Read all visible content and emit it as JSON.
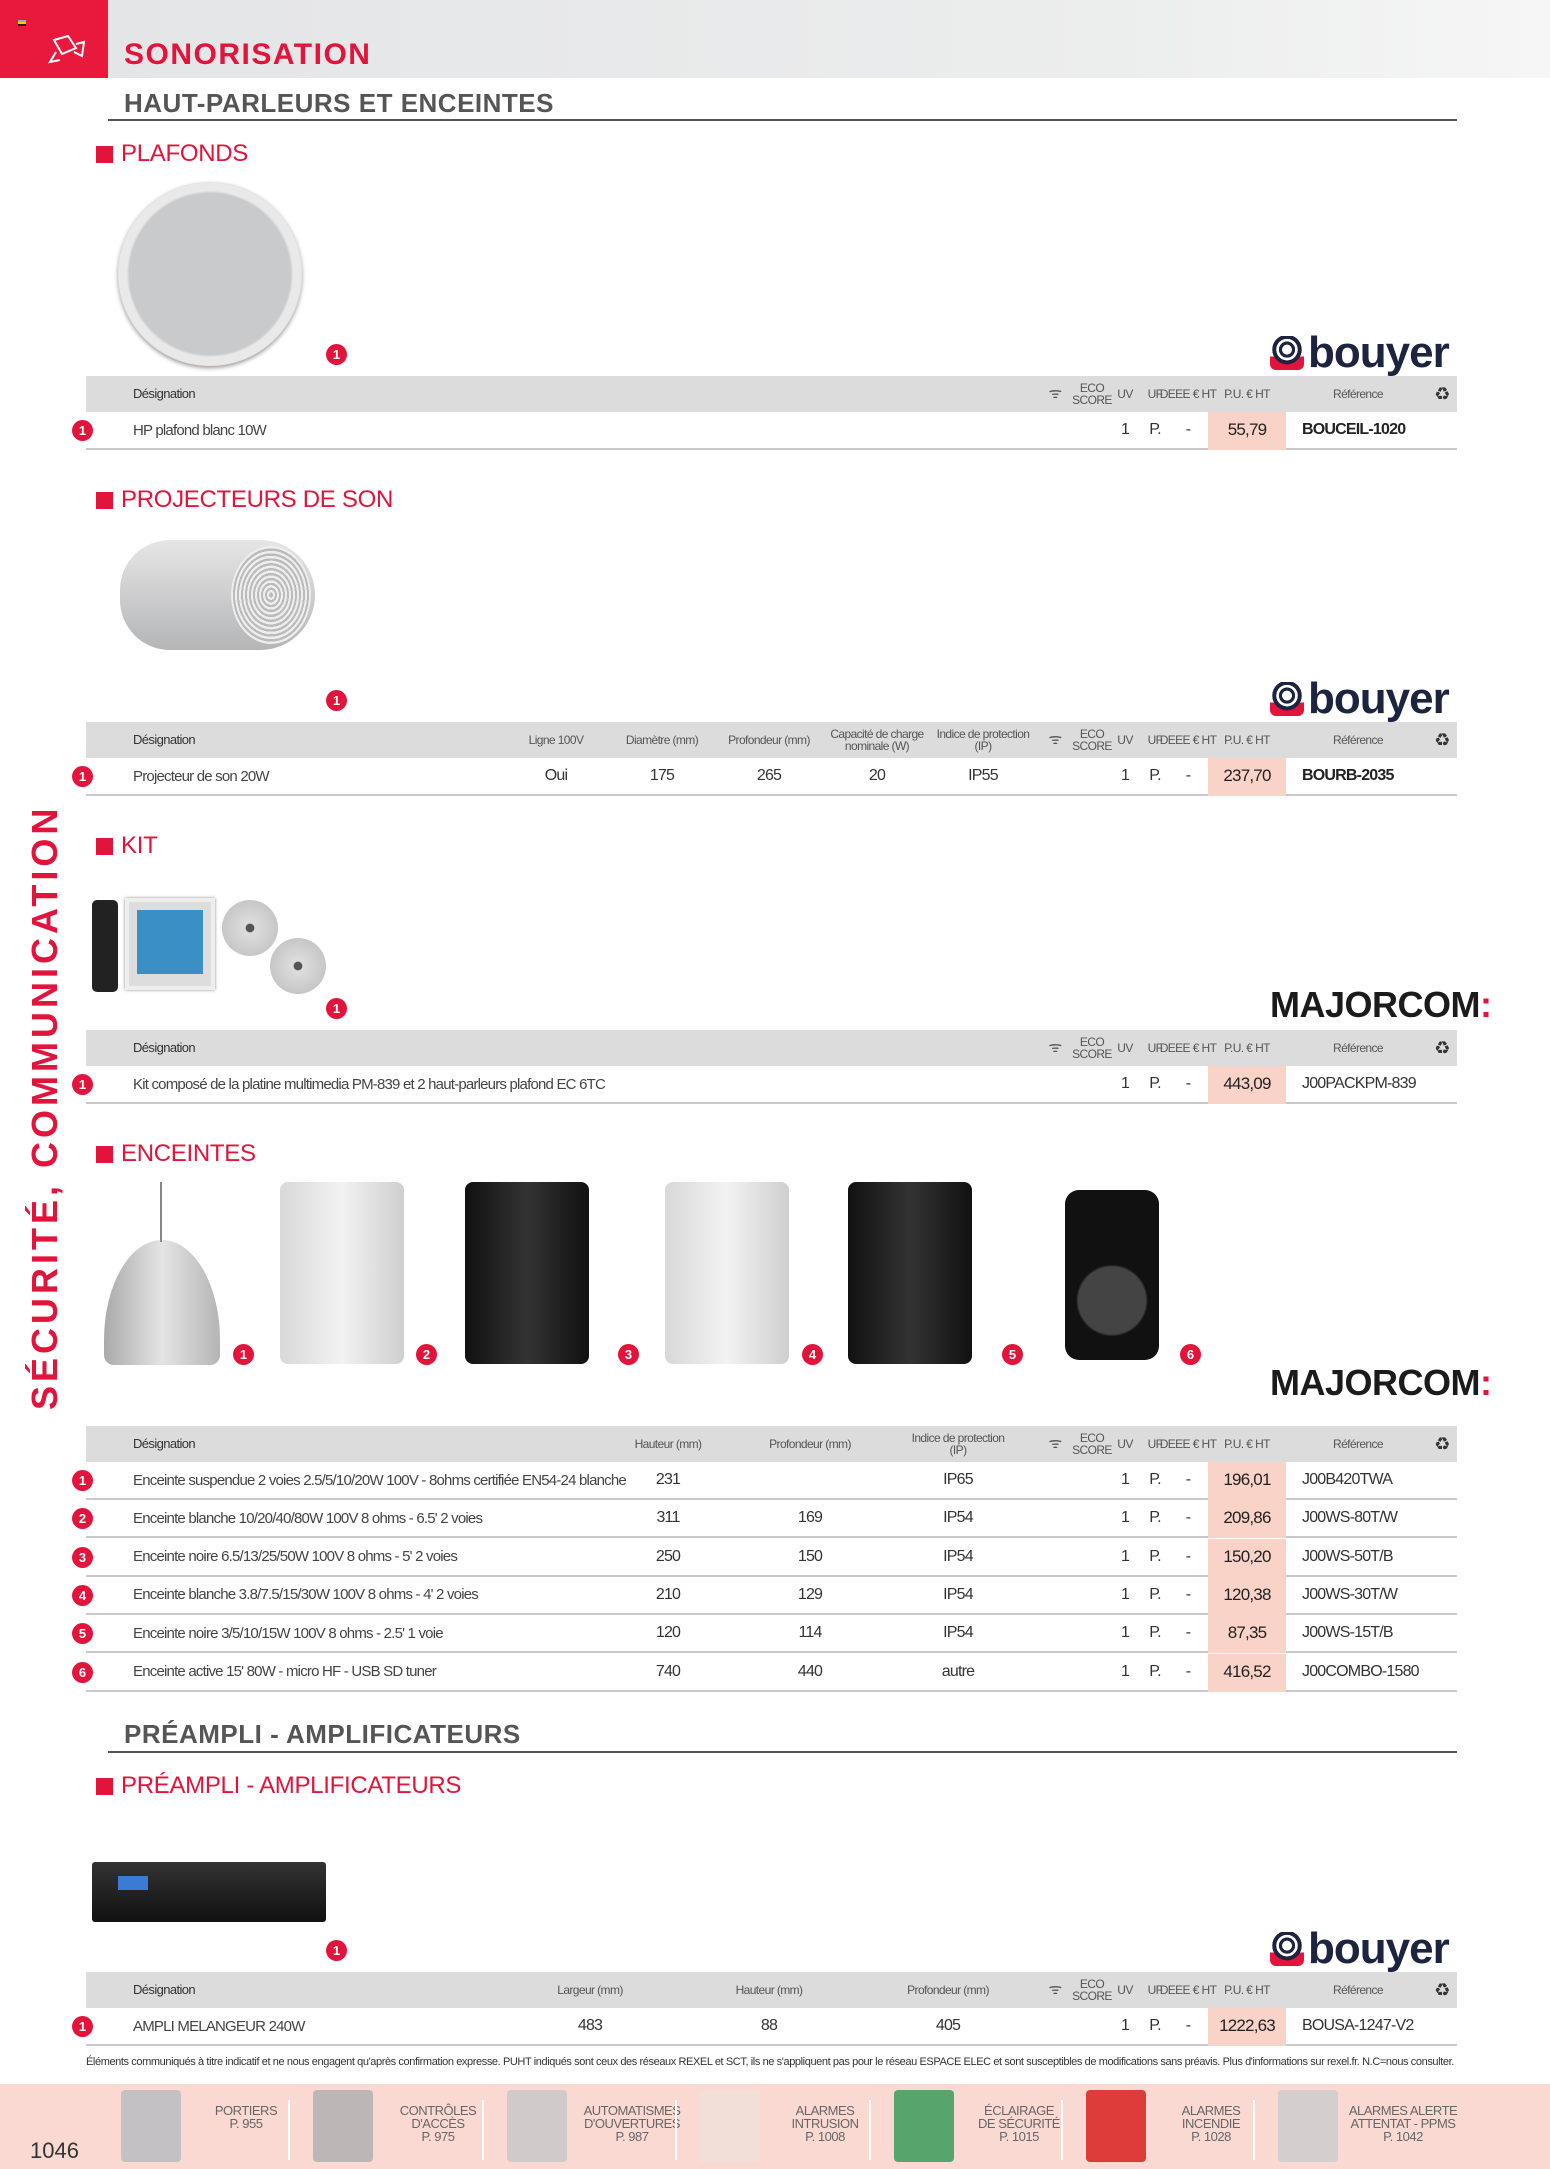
{
  "header": {
    "title": "SONORISATION",
    "side_title": "SÉCURITÉ, COMMUNICATION",
    "category_icon": "camera-icon",
    "accent_color": "#e2143b"
  },
  "sections": [
    {
      "title": "HAUT-PARLEURS ET ENCEINTES"
    },
    {
      "title": "PRÉAMPLI - AMPLIFICATEURS"
    }
  ],
  "blocks": [
    {
      "heading": "PLAFONDS",
      "brand": "bouyer",
      "markers": [
        "1"
      ],
      "table": {
        "columns": [
          "Désignation",
          "ECO SCORE",
          "UV",
          "UF",
          "DEEE € HT",
          "P.U. € HT",
          "Référence"
        ],
        "rows": [
          {
            "num": "1",
            "cells": [
              "HP plafond blanc 10W",
              "",
              "1",
              "P.",
              "-",
              "55,79",
              "BOUCEIL-1020"
            ]
          }
        ]
      }
    },
    {
      "heading": "PROJECTEURS DE SON",
      "brand": "bouyer",
      "markers": [
        "1"
      ],
      "table": {
        "columns": [
          "Désignation",
          "Ligne 100V",
          "Diamètre (mm)",
          "Profondeur (mm)",
          "Capacité de charge nominale (W)",
          "Indice de protection (IP)",
          "ECO SCORE",
          "UV",
          "UF",
          "DEEE € HT",
          "P.U. € HT",
          "Référence"
        ],
        "rows": [
          {
            "num": "1",
            "cells": [
              "Projecteur de son 20W",
              "Oui",
              "175",
              "265",
              "20",
              "IP55",
              "",
              "1",
              "P.",
              "-",
              "237,70",
              "BOURB-2035"
            ]
          }
        ]
      }
    },
    {
      "heading": "KIT",
      "brand": "MAJORCOM",
      "markers": [
        "1"
      ],
      "table": {
        "columns": [
          "Désignation",
          "ECO SCORE",
          "UV",
          "UF",
          "DEEE € HT",
          "P.U. € HT",
          "Référence"
        ],
        "rows": [
          {
            "num": "1",
            "cells": [
              "Kit composé de la platine multimedia PM-839 et 2 haut-parleurs plafond EC 6TC",
              "",
              "1",
              "P.",
              "-",
              "443,09",
              "J00PACKPM-839"
            ]
          }
        ]
      }
    },
    {
      "heading": "ENCEINTES",
      "brand": "MAJORCOM",
      "markers": [
        "1",
        "2",
        "3",
        "4",
        "5",
        "6"
      ],
      "table": {
        "columns": [
          "Désignation",
          "Hauteur (mm)",
          "Profondeur (mm)",
          "Indice de protection (IP)",
          "ECO SCORE",
          "UV",
          "UF",
          "DEEE € HT",
          "P.U. € HT",
          "Référence"
        ],
        "rows": [
          {
            "num": "1",
            "cells": [
              "Enceinte suspendue 2 voies 2.5/5/10/20W 100V - 8ohms certifiée EN54-24 blanche",
              "231",
              "",
              "IP65",
              "",
              "1",
              "P.",
              "-",
              "196,01",
              "J00B420TWA"
            ]
          },
          {
            "num": "2",
            "cells": [
              "Enceinte blanche 10/20/40/80W 100V 8 ohms - 6.5' 2 voies",
              "311",
              "169",
              "IP54",
              "",
              "1",
              "P.",
              "-",
              "209,86",
              "J00WS-80T/W"
            ]
          },
          {
            "num": "3",
            "cells": [
              "Enceinte noire 6.5/13/25/50W 100V 8 ohms - 5' 2 voies",
              "250",
              "150",
              "IP54",
              "",
              "1",
              "P.",
              "-",
              "150,20",
              "J00WS-50T/B"
            ]
          },
          {
            "num": "4",
            "cells": [
              "Enceinte blanche 3.8/7.5/15/30W 100V 8 ohms - 4' 2 voies",
              "210",
              "129",
              "IP54",
              "",
              "1",
              "P.",
              "-",
              "120,38",
              "J00WS-30T/W"
            ]
          },
          {
            "num": "5",
            "cells": [
              "Enceinte noire 3/5/10/15W 100V 8 ohms - 2.5' 1 voie",
              "120",
              "114",
              "IP54",
              "",
              "1",
              "P.",
              "-",
              "87,35",
              "J00WS-15T/B"
            ]
          },
          {
            "num": "6",
            "cells": [
              "Enceinte active 15' 80W - micro HF - USB SD tuner",
              "740",
              "440",
              "autre",
              "",
              "1",
              "P.",
              "-",
              "416,52",
              "J00COMBO-1580"
            ]
          }
        ]
      }
    },
    {
      "heading": "PRÉAMPLI - AMPLIFICATEURS",
      "brand": "bouyer",
      "markers": [
        "1"
      ],
      "table": {
        "columns": [
          "Désignation",
          "Largeur (mm)",
          "Hauteur (mm)",
          "Profondeur (mm)",
          "ECO SCORE",
          "UV",
          "UF",
          "DEEE € HT",
          "P.U. € HT",
          "Référence"
        ],
        "rows": [
          {
            "num": "1",
            "cells": [
              "AMPLI MELANGEUR 240W",
              "483",
              "88",
              "405",
              "",
              "1",
              "P.",
              "-",
              "1222,63",
              "BOUSA-1247-V2"
            ]
          }
        ]
      }
    }
  ],
  "brands": {
    "bouyer": "bouyer",
    "majorcom": "MAJORCOM",
    "majorcom_colon": ":"
  },
  "table_icons": {
    "wifi": "wifi-icon",
    "recycle": "recycle-icon"
  },
  "disclaimer": "Éléments communiqués à titre indicatif et ne nous engagent qu'après confirmation expresse. PUHT indiqués sont ceux des réseaux REXEL et SCT, ils ne s'appliquent pas pour le réseau ESPACE ELEC et sont susceptibles de modifications sans préavis. Plus d'informations sur rexel.fr. N.C=nous consulter.",
  "footer": {
    "page_number": "1046",
    "items": [
      {
        "label": "PORTIERS\nP. 955"
      },
      {
        "label": "CONTRÔLES\nD'ACCÈS\nP. 975"
      },
      {
        "label": "AUTOMATISMES\nD'OUVERTURES\nP. 987"
      },
      {
        "label": "ALARMES\nINTRUSION\nP. 1008"
      },
      {
        "label": "ÉCLAIRAGE\nDE SÉCURITÉ\nP. 1015"
      },
      {
        "label": "ALARMES\nINCENDIE\nP. 1028"
      },
      {
        "label": "ALARMES ALERTE\nATTENTAT - PPMS\nP. 1042"
      }
    ]
  }
}
